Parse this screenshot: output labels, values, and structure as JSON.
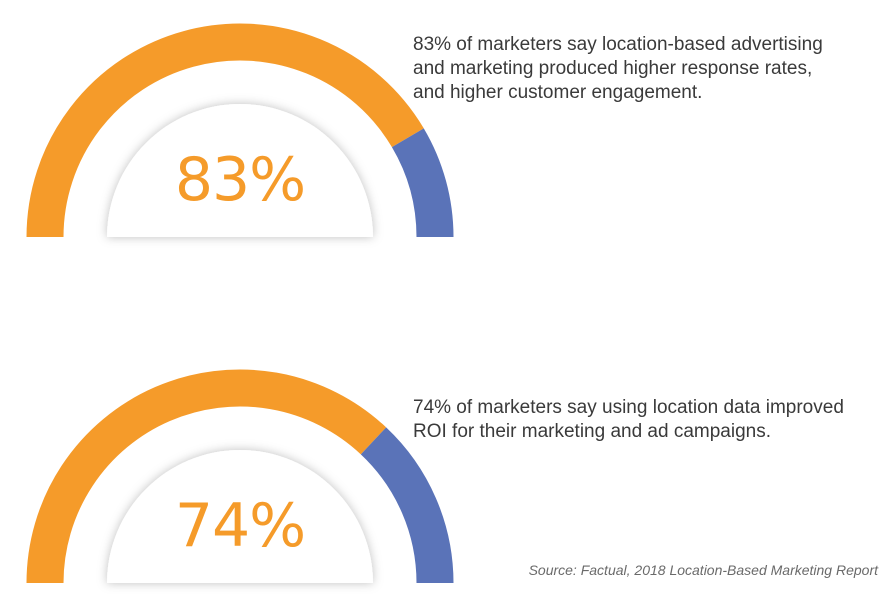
{
  "colors": {
    "primary": "#F59B2A",
    "remainder": "#5A73B8",
    "text": "#3A3A3A",
    "source": "#6A6A6A"
  },
  "chart_data": [
    {
      "type": "gauge",
      "value": 83,
      "max": 100,
      "value_label": "83%",
      "description": "83% of marketers say location-based advertising\nand marketing produced higher response rates,\nand higher customer engagement."
    },
    {
      "type": "gauge",
      "value": 74,
      "max": 100,
      "value_label": "74%",
      "description": "74% of marketers say using location data improved\nROI for their marketing and ad campaigns."
    }
  ],
  "source": "Source: Factual, 2018 Location-Based Marketing Report"
}
